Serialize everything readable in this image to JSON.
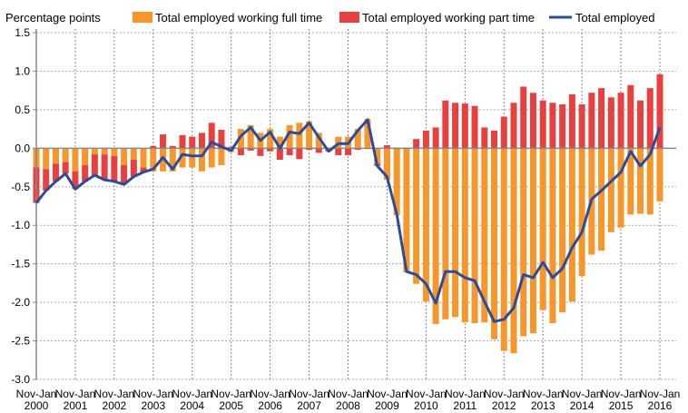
{
  "chart_data": {
    "type": "bar",
    "ylabel": "Percentage points",
    "ylim": [
      -3.0,
      1.5
    ],
    "yticks": [
      "1.5",
      "1.0",
      "0.5",
      "0.0",
      "-0.5",
      "-1.0",
      "-1.5",
      "-2.0",
      "-2.5",
      "-3.0"
    ],
    "ytick_values": [
      1.5,
      1.0,
      0.5,
      0.0,
      -0.5,
      -1.0,
      -1.5,
      -2.0,
      -2.5,
      -3.0
    ],
    "xtick_top": "Nov-Jan",
    "xticks": [
      "2000",
      "2001",
      "2002",
      "2003",
      "2004",
      "2005",
      "2006",
      "2007",
      "2008",
      "2009",
      "2010",
      "2011",
      "2012",
      "2013",
      "2014",
      "2015",
      "2016"
    ],
    "x_start": 2000,
    "x_step": 0.25,
    "grid": true,
    "legend_placement": "top",
    "stacked": true,
    "series": [
      {
        "name": "Total employed working full time",
        "kind": "bar",
        "color": "#F7962B",
        "values": [
          -0.25,
          -0.27,
          -0.2,
          -0.18,
          -0.3,
          -0.22,
          -0.08,
          -0.08,
          -0.1,
          -0.22,
          -0.15,
          -0.25,
          -0.3,
          -0.3,
          -0.3,
          -0.25,
          -0.25,
          -0.3,
          -0.25,
          -0.22,
          -0.05,
          0.25,
          0.3,
          0.2,
          0.25,
          0.15,
          0.3,
          0.33,
          0.35,
          0.2,
          0.0,
          0.15,
          0.15,
          0.25,
          0.38,
          -0.2,
          -0.41,
          -0.87,
          -1.61,
          -1.76,
          -1.99,
          -2.28,
          -2.22,
          -2.19,
          -2.26,
          -2.27,
          -2.26,
          -2.48,
          -2.63,
          -2.66,
          -2.44,
          -2.4,
          -2.1,
          -2.27,
          -2.13,
          -1.99,
          -1.66,
          -1.38,
          -1.33,
          -1.09,
          -1.03,
          -0.86,
          -0.85,
          -0.86,
          -0.69
        ]
      },
      {
        "name": "Total employed working part time",
        "kind": "bar",
        "color": "#E8403F",
        "values": [
          -0.46,
          -0.28,
          -0.23,
          -0.15,
          -0.23,
          -0.21,
          -0.27,
          -0.33,
          -0.33,
          -0.25,
          -0.22,
          -0.06,
          0.03,
          0.18,
          0.03,
          0.17,
          0.15,
          0.2,
          0.33,
          0.24,
          0.02,
          -0.09,
          -0.03,
          -0.1,
          -0.04,
          -0.15,
          -0.09,
          -0.14,
          -0.02,
          -0.06,
          -0.04,
          -0.09,
          -0.09,
          -0.02,
          -0.01,
          -0.03,
          0.04,
          0.01,
          0.01,
          0.12,
          0.23,
          0.27,
          0.62,
          0.59,
          0.58,
          0.55,
          0.27,
          0.23,
          0.41,
          0.59,
          0.8,
          0.72,
          0.62,
          0.59,
          0.57,
          0.7,
          0.57,
          0.72,
          0.78,
          0.66,
          0.72,
          0.82,
          0.62,
          0.78,
          0.96
        ]
      },
      {
        "name": "Total employed",
        "kind": "line",
        "color": "#2B4B9B",
        "values": [
          -0.71,
          -0.55,
          -0.43,
          -0.33,
          -0.53,
          -0.43,
          -0.35,
          -0.41,
          -0.43,
          -0.47,
          -0.37,
          -0.31,
          -0.27,
          -0.12,
          -0.27,
          -0.08,
          -0.1,
          -0.1,
          0.08,
          0.02,
          -0.03,
          0.16,
          0.27,
          0.1,
          0.21,
          0.0,
          0.21,
          0.19,
          0.33,
          0.14,
          -0.04,
          0.06,
          0.06,
          0.23,
          0.37,
          -0.23,
          -0.37,
          -0.86,
          -1.6,
          -1.64,
          -1.76,
          -2.01,
          -1.6,
          -1.6,
          -1.68,
          -1.72,
          -1.99,
          -2.25,
          -2.22,
          -2.07,
          -1.64,
          -1.68,
          -1.48,
          -1.68,
          -1.56,
          -1.29,
          -1.09,
          -0.66,
          -0.55,
          -0.43,
          -0.31,
          -0.04,
          -0.23,
          -0.08,
          0.27
        ]
      }
    ]
  }
}
